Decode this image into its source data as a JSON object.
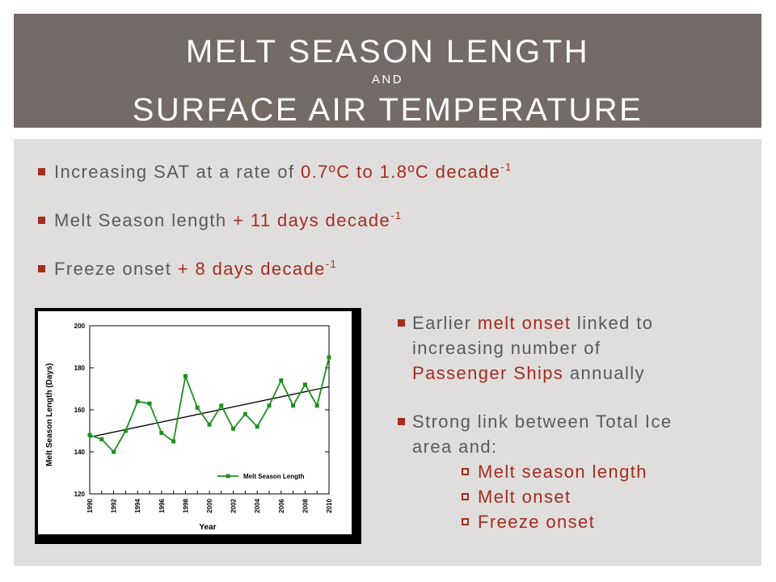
{
  "title": {
    "line1": "MELT SEASON LENGTH",
    "and": "AND",
    "line2": "SURFACE AIR TEMPERATURE"
  },
  "bullets": [
    {
      "text": "Increasing SAT at a rate of ",
      "highlight": "0.7ºC to 1.8ºC decade",
      "sup": "-1"
    },
    {
      "text": "Melt Season length ",
      "highlight": "+ 11 days decade",
      "sup": "-1"
    },
    {
      "text": "Freeze onset ",
      "highlight": "+ 8 days decade",
      "sup": "-1"
    }
  ],
  "side": {
    "item1": {
      "a": "Earlier ",
      "b": "melt onset",
      "c": " linked to",
      "d": "increasing number of",
      "e": "Passenger Ships",
      "f": " annually"
    },
    "item2": {
      "a": "Strong link between Total Ice",
      "b": "area and:"
    },
    "sub_items": [
      "Melt season length",
      "Melt onset",
      "Freeze onset"
    ]
  },
  "colors": {
    "title_bg": "#726b68",
    "content_bg": "#e0dedd",
    "accent": "#a32d1f",
    "series": "#1f8f1f"
  },
  "chart_data": {
    "type": "line",
    "xlabel": "Year",
    "ylabel": "Melt Season Length (Days)",
    "xlim": [
      1990,
      2010
    ],
    "ylim": [
      120,
      200
    ],
    "x_ticks": [
      "1990",
      "1992",
      "1994",
      "1996",
      "1998",
      "2000",
      "2002",
      "2004",
      "2006",
      "2008",
      "2010"
    ],
    "y_ticks": [
      "120",
      "140",
      "160",
      "180",
      "200"
    ],
    "series": [
      {
        "name": "Melt Season Length",
        "x": [
          1990,
          1991,
          1992,
          1993,
          1994,
          1995,
          1996,
          1997,
          1998,
          1999,
          2000,
          2001,
          2002,
          2003,
          2004,
          2005,
          2006,
          2007,
          2008,
          2009,
          2010
        ],
        "values": [
          148,
          146,
          140,
          150,
          164,
          163,
          149,
          145,
          176,
          161,
          153,
          162,
          151,
          158,
          152,
          162,
          174,
          162,
          172,
          162,
          185
        ]
      }
    ],
    "trend": {
      "x": [
        1990,
        2010
      ],
      "y": [
        147,
        171
      ]
    },
    "legend": "bottom-right"
  }
}
